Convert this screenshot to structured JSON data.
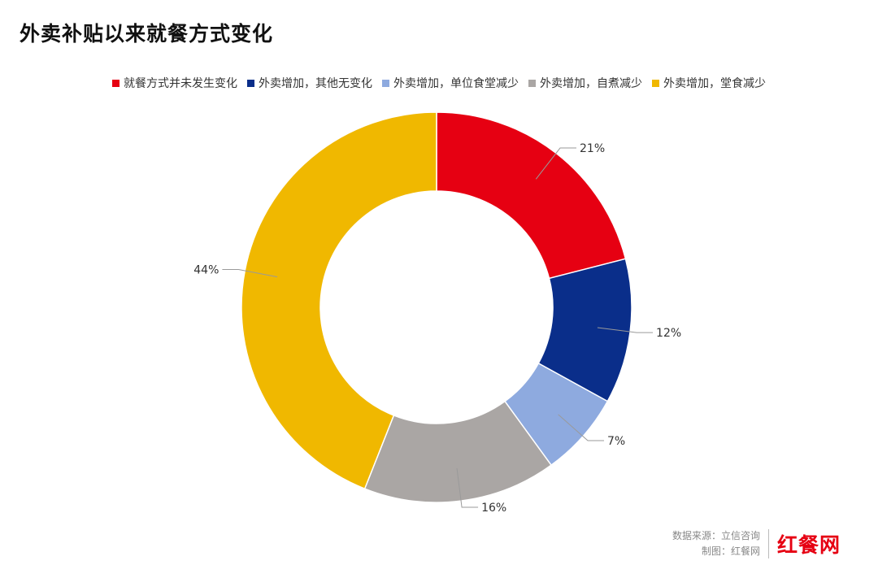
{
  "title": "外卖补贴以来就餐方式变化",
  "source": {
    "line1": "数据来源：立信咨询",
    "line2": "制图：红餐网"
  },
  "logo_text": "红餐网",
  "chart_data": {
    "type": "pie",
    "donut": true,
    "title": "外卖补贴以来就餐方式变化",
    "legend_position": "top",
    "slices": [
      {
        "name": "就餐方式并未发生变化",
        "value": 21,
        "label": "21%",
        "color": "#e60012"
      },
      {
        "name": "外卖增加，其他无变化",
        "value": 12,
        "label": "12%",
        "color": "#0a2e8a"
      },
      {
        "name": "外卖增加，单位食堂减少",
        "value": 7,
        "label": "7%",
        "color": "#8eaadf"
      },
      {
        "name": "外卖增加，自煮减少",
        "value": 16,
        "label": "16%",
        "color": "#aaa6a4"
      },
      {
        "name": "外卖增加，堂食减少",
        "value": 44,
        "label": "44%",
        "color": "#f0b800"
      }
    ]
  }
}
